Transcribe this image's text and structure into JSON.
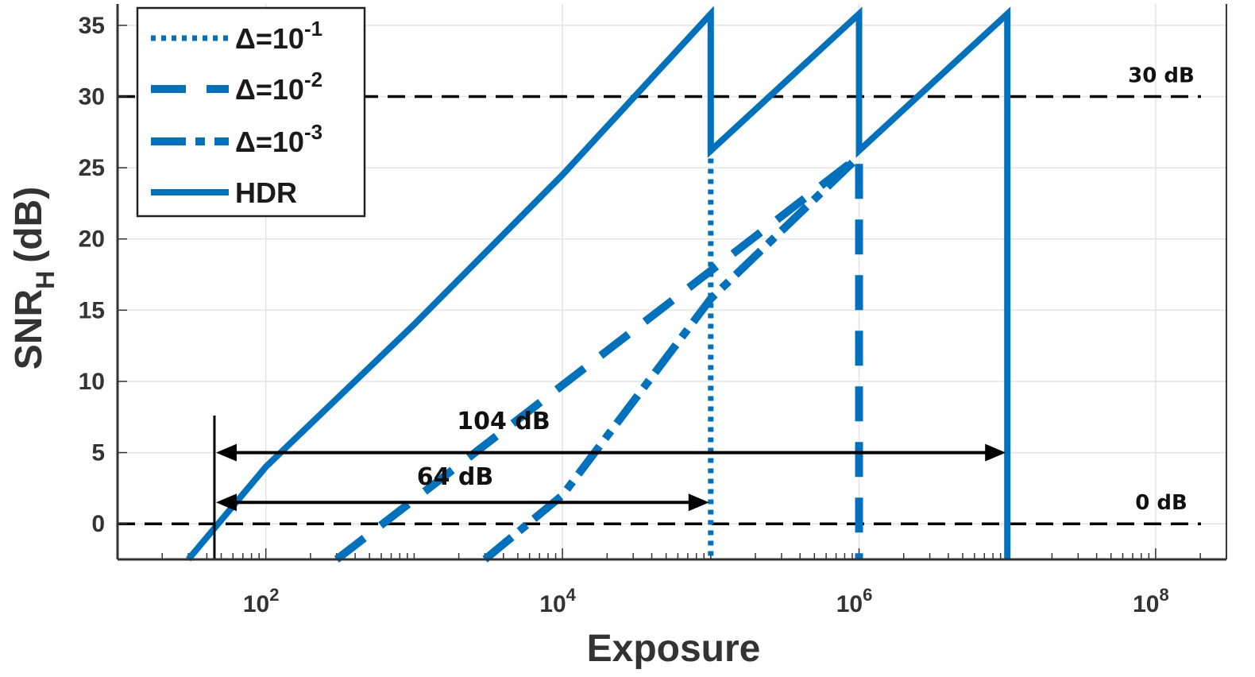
{
  "chart_data": {
    "type": "line",
    "xlabel": "Exposure",
    "ylabel_main": "SNR",
    "ylabel_sub": "H",
    "ylabel_unit": "(dB)",
    "x_scale": "log",
    "xlim": [
      10,
      300000000.0
    ],
    "ylim": [
      -2.5,
      36.5
    ],
    "grid": true,
    "legend_position": "top-left",
    "color": "#0072BD",
    "x_ticks": [
      {
        "base": "10",
        "exp": "2",
        "value": 100
      },
      {
        "base": "10",
        "exp": "4",
        "value": 10000
      },
      {
        "base": "10",
        "exp": "6",
        "value": 1000000
      },
      {
        "base": "10",
        "exp": "8",
        "value": 100000000
      }
    ],
    "y_ticks": [
      0,
      5,
      10,
      15,
      20,
      25,
      30,
      35
    ],
    "series": [
      {
        "legend_prefix": "Δ=10",
        "legend_exp": "-1",
        "style": "dotted",
        "points": [
          [
            100000,
            35.8
          ],
          [
            100000,
            -2.5
          ]
        ]
      },
      {
        "legend_prefix": "Δ=10",
        "legend_exp": "-2",
        "style": "dashed",
        "points": [
          [
            300,
            -2.5
          ],
          [
            1000000,
            25.8
          ],
          [
            1000000,
            -2.5
          ]
        ]
      },
      {
        "legend_prefix": "Δ=10",
        "legend_exp": "-3",
        "style": "dashdot",
        "points": [
          [
            3000,
            -2.5
          ],
          [
            10000,
            2.0
          ],
          [
            100000,
            15.8
          ],
          [
            1000000,
            25.8
          ]
        ]
      },
      {
        "legend_prefix": "HDR",
        "legend_exp": "",
        "style": "solid",
        "points": [
          [
            30,
            -2.5
          ],
          [
            100,
            4.0
          ],
          [
            1000,
            14.0
          ],
          [
            10000,
            24.5
          ],
          [
            100000,
            35.8
          ],
          [
            100000,
            26.2
          ],
          [
            1000000,
            35.8
          ],
          [
            1000000,
            26.2
          ],
          [
            10000000,
            35.8
          ],
          [
            10000000,
            -2.5
          ]
        ]
      }
    ],
    "reference_lines": [
      {
        "y": 30,
        "label": "30 dB"
      },
      {
        "y": 0,
        "label": "0 dB"
      }
    ],
    "marker_line": {
      "x": 45
    },
    "annotations": [
      {
        "label": "104 dB",
        "x_start": 45,
        "x_end": 10000000,
        "y": 5
      },
      {
        "label": "64 dB",
        "x_start": 45,
        "x_end": 100000,
        "y": 1.5
      }
    ]
  }
}
